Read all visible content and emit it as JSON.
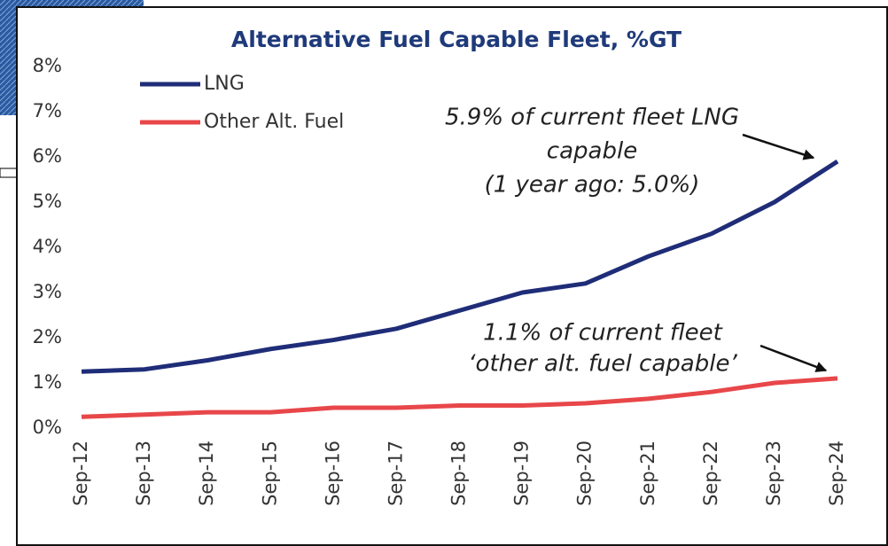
{
  "chart_data": {
    "type": "line",
    "title": "Alternative Fuel Capable Fleet, %GT",
    "x": [
      "Sep-12",
      "Sep-13",
      "Sep-14",
      "Sep-15",
      "Sep-16",
      "Sep-17",
      "Sep-18",
      "Sep-19",
      "Sep-20",
      "Sep-21",
      "Sep-22",
      "Sep-23",
      "Sep-24"
    ],
    "series": [
      {
        "name": "LNG",
        "color": "#1f2d78",
        "values": [
          1.25,
          1.3,
          1.5,
          1.75,
          1.95,
          2.2,
          2.6,
          3.0,
          3.2,
          3.8,
          4.3,
          5.0,
          5.9
        ]
      },
      {
        "name": "Other Alt. Fuel",
        "color": "#e8474a",
        "values": [
          0.25,
          0.3,
          0.35,
          0.35,
          0.45,
          0.45,
          0.5,
          0.5,
          0.55,
          0.65,
          0.8,
          1.0,
          1.1
        ]
      }
    ],
    "ylim": [
      0,
      8
    ],
    "yticks": [
      {
        "value": 0,
        "label": "0%"
      },
      {
        "value": 1,
        "label": "1%"
      },
      {
        "value": 2,
        "label": "2%"
      },
      {
        "value": 3,
        "label": "3%"
      },
      {
        "value": 4,
        "label": "4%"
      },
      {
        "value": 5,
        "label": "5%"
      },
      {
        "value": 6,
        "label": "6%"
      },
      {
        "value": 7,
        "label": "7%"
      },
      {
        "value": 8,
        "label": "8%"
      }
    ],
    "legend": "top-left",
    "annotations": [
      {
        "lines": [
          "5.9% of current fleet LNG",
          "capable",
          "(1 year ago: 5.0%)"
        ]
      },
      {
        "lines": [
          "1.1% of current fleet",
          "‘other alt. fuel capable’"
        ]
      }
    ]
  }
}
